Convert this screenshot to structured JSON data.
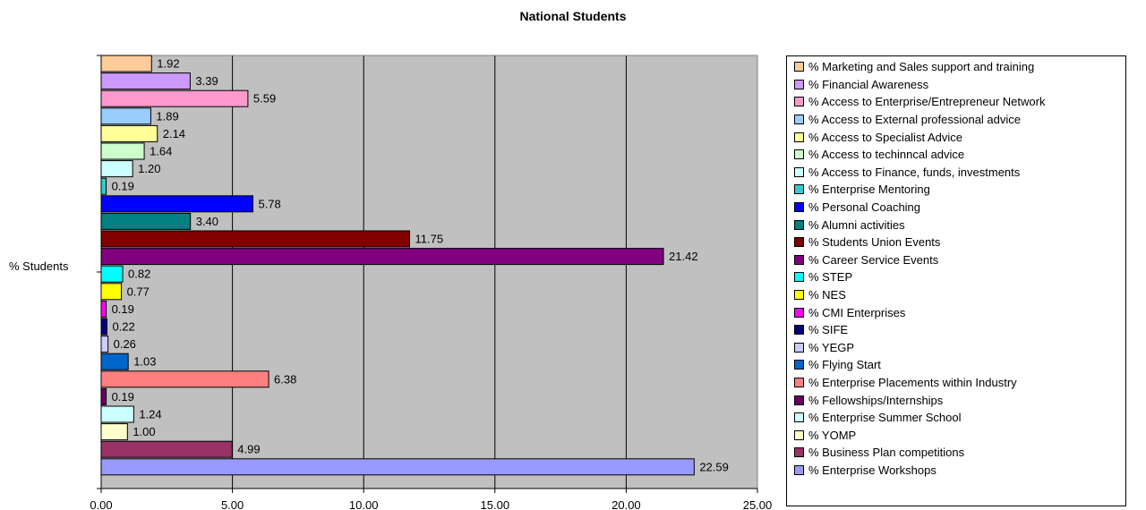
{
  "chart_data": {
    "type": "bar",
    "orientation": "horizontal",
    "title": "National Students",
    "category": "% Students",
    "xlim": [
      0,
      25
    ],
    "xticks": [
      "0.00",
      "5.00",
      "10.00",
      "15.00",
      "20.00",
      "25.00"
    ],
    "grid": true,
    "legend_position": "right",
    "series": [
      {
        "name": "% Marketing and Sales support and training",
        "value": 1.92,
        "label": "1.92",
        "color": "#FFCC99"
      },
      {
        "name": "% Financial Awareness",
        "value": 3.39,
        "label": "3.39",
        "color": "#CC99FF"
      },
      {
        "name": "% Access to Enterprise/Entrepreneur Network",
        "value": 5.59,
        "label": "5.59",
        "color": "#FF99CC"
      },
      {
        "name": "% Access to External professional advice",
        "value": 1.89,
        "label": "1.89",
        "color": "#99CCFF"
      },
      {
        "name": "% Access to Specialist Advice",
        "value": 2.14,
        "label": "2.14",
        "color": "#FFFF99"
      },
      {
        "name": "% Access to techinncal advice",
        "value": 1.64,
        "label": "1.64",
        "color": "#CCFFCC"
      },
      {
        "name": "% Access to Finance, funds, investments",
        "value": 1.2,
        "label": "1.20",
        "color": "#CCFFFF"
      },
      {
        "name": "% Enterprise Mentoring",
        "value": 0.19,
        "label": "0.19",
        "color": "#33CCCC"
      },
      {
        "name": "% Personal Coaching",
        "value": 5.78,
        "label": "5.78",
        "color": "#0000FF"
      },
      {
        "name": "% Alumni activities",
        "value": 3.4,
        "label": "3.40",
        "color": "#008080"
      },
      {
        "name": "% Students Union Events",
        "value": 11.75,
        "label": "11.75",
        "color": "#800000"
      },
      {
        "name": "% Career Service Events",
        "value": 21.42,
        "label": "21.42",
        "color": "#800080"
      },
      {
        "name": "% STEP",
        "value": 0.82,
        "label": "0.82",
        "color": "#00FFFF"
      },
      {
        "name": "% NES",
        "value": 0.77,
        "label": "0.77",
        "color": "#FFFF00"
      },
      {
        "name": "% CMI Enterprises",
        "value": 0.19,
        "label": "0.19",
        "color": "#FF00FF"
      },
      {
        "name": "% SIFE",
        "value": 0.22,
        "label": "0.22",
        "color": "#000080"
      },
      {
        "name": "% YEGP",
        "value": 0.26,
        "label": "0.26",
        "color": "#CCCCFF"
      },
      {
        "name": "% Flying Start",
        "value": 1.03,
        "label": "1.03",
        "color": "#0066CC"
      },
      {
        "name": "% Enterprise Placements within Industry",
        "value": 6.38,
        "label": "6.38",
        "color": "#FF8080"
      },
      {
        "name": "% Fellowships/Internships",
        "value": 0.19,
        "label": "0.19",
        "color": "#660066"
      },
      {
        "name": "% Enterprise Summer School",
        "value": 1.24,
        "label": "1.24",
        "color": "#CCFFFF"
      },
      {
        "name": "% YOMP",
        "value": 1.0,
        "label": "1.00",
        "color": "#FFFFCC"
      },
      {
        "name": "% Business Plan competitions",
        "value": 4.99,
        "label": "4.99",
        "color": "#993366"
      },
      {
        "name": "% Enterprise Workshops",
        "value": 22.59,
        "label": "22.59",
        "color": "#9999FF"
      }
    ]
  }
}
